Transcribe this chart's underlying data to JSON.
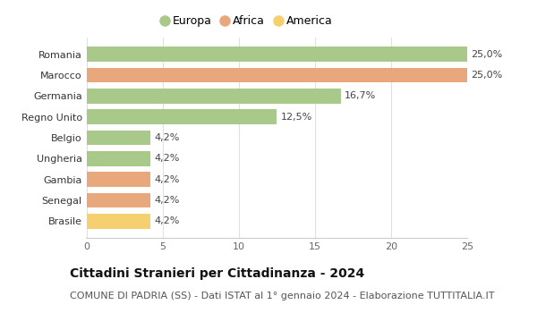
{
  "categories": [
    "Brasile",
    "Senegal",
    "Gambia",
    "Ungheria",
    "Belgio",
    "Regno Unito",
    "Germania",
    "Marocco",
    "Romania"
  ],
  "values": [
    4.2,
    4.2,
    4.2,
    4.2,
    4.2,
    12.5,
    16.7,
    25.0,
    25.0
  ],
  "labels": [
    "4,2%",
    "4,2%",
    "4,2%",
    "4,2%",
    "4,2%",
    "12,5%",
    "16,7%",
    "25,0%",
    "25,0%"
  ],
  "colors": [
    "#f5d06e",
    "#e8a87c",
    "#e8a87c",
    "#a8c98a",
    "#a8c98a",
    "#a8c98a",
    "#a8c98a",
    "#e8a87c",
    "#a8c98a"
  ],
  "legend": [
    {
      "label": "Europa",
      "color": "#a8c98a"
    },
    {
      "label": "Africa",
      "color": "#e8a87c"
    },
    {
      "label": "America",
      "color": "#f5d06e"
    }
  ],
  "xlim": [
    0,
    26.5
  ],
  "xticks": [
    0,
    5,
    10,
    15,
    20,
    25
  ],
  "title": "Cittadini Stranieri per Cittadinanza - 2024",
  "subtitle": "COMUNE DI PADRIA (SS) - Dati ISTAT al 1° gennaio 2024 - Elaborazione TUTTITALIA.IT",
  "title_fontsize": 10,
  "subtitle_fontsize": 8,
  "label_fontsize": 8,
  "tick_fontsize": 8,
  "legend_fontsize": 9,
  "bar_height": 0.72,
  "background_color": "#ffffff",
  "grid_color": "#e0e0e0"
}
